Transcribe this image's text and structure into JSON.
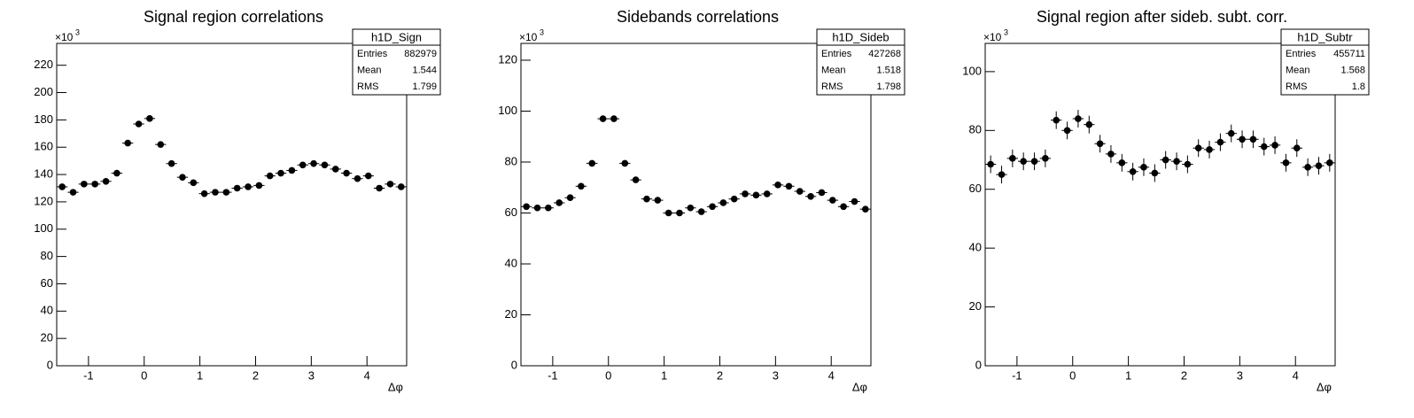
{
  "chart_data": [
    {
      "type": "scatter",
      "title": "Signal region correlations",
      "xlabel": "Δφ",
      "multiplier": "×10",
      "multiplier_exponent": "3",
      "stats": {
        "name": "h1D_Sign",
        "rows": [
          [
            "Entries",
            882979
          ],
          [
            "Mean",
            1.544
          ],
          [
            "RMS",
            1.799
          ]
        ]
      },
      "x": [
        -1.473,
        -1.276,
        -1.08,
        -0.884,
        -0.687,
        -0.491,
        -0.295,
        -0.098,
        0.098,
        0.295,
        0.491,
        0.687,
        0.884,
        1.08,
        1.276,
        1.473,
        1.669,
        1.866,
        2.062,
        2.258,
        2.454,
        2.651,
        2.847,
        3.043,
        3.24,
        3.436,
        3.632,
        3.829,
        4.025,
        4.221,
        4.418,
        4.614
      ],
      "values": [
        131,
        127,
        133,
        133,
        135,
        141,
        163,
        177,
        181,
        162,
        148,
        138,
        134,
        126,
        127,
        127,
        130,
        131,
        132,
        139,
        141,
        143,
        147,
        148,
        147,
        144,
        141,
        137,
        139,
        130,
        133,
        131
      ],
      "errors": [
        0.4,
        0.4,
        0.4,
        0.4,
        0.4,
        0.4,
        0.4,
        0.4,
        0.4,
        0.4,
        0.4,
        0.4,
        0.4,
        0.4,
        0.4,
        0.4,
        0.4,
        0.4,
        0.4,
        0.4,
        0.4,
        0.4,
        0.4,
        0.4,
        0.4,
        0.4,
        0.4,
        0.4,
        0.4,
        0.4,
        0.4,
        0.4
      ],
      "color": "#000000",
      "xlim": [
        -1.5708,
        4.7124
      ],
      "ylim": [
        0,
        236
      ],
      "xticks": [
        -1,
        0,
        1,
        2,
        3,
        4
      ],
      "yticks": [
        0,
        20,
        40,
        60,
        80,
        100,
        120,
        140,
        160,
        180,
        200,
        220
      ]
    },
    {
      "type": "scatter",
      "title": "Sidebands correlations",
      "xlabel": "Δφ",
      "multiplier": "×10",
      "multiplier_exponent": "3",
      "stats": {
        "name": "h1D_Sideb",
        "rows": [
          [
            "Entries",
            427268
          ],
          [
            "Mean",
            1.518
          ],
          [
            "RMS",
            1.798
          ]
        ]
      },
      "x": [
        -1.473,
        -1.276,
        -1.08,
        -0.884,
        -0.687,
        -0.491,
        -0.295,
        -0.098,
        0.098,
        0.295,
        0.491,
        0.687,
        0.884,
        1.08,
        1.276,
        1.473,
        1.669,
        1.866,
        2.062,
        2.258,
        2.454,
        2.651,
        2.847,
        3.043,
        3.24,
        3.436,
        3.632,
        3.829,
        4.025,
        4.221,
        4.418,
        4.614
      ],
      "values": [
        62.5,
        62,
        62,
        64,
        66,
        70.5,
        79.5,
        97,
        97,
        79.5,
        73,
        65.5,
        65,
        60,
        60,
        62,
        60.5,
        62.5,
        64,
        65.5,
        67.5,
        67,
        67.5,
        71,
        70.5,
        68.5,
        66.5,
        68,
        65,
        62.5,
        64.5,
        61.5
      ],
      "errors": [
        0.3,
        0.3,
        0.3,
        0.3,
        0.3,
        0.3,
        0.3,
        0.3,
        0.3,
        0.3,
        0.3,
        0.3,
        0.3,
        0.3,
        0.3,
        0.3,
        0.3,
        0.3,
        0.3,
        0.3,
        0.3,
        0.3,
        0.3,
        0.3,
        0.3,
        0.3,
        0.3,
        0.3,
        0.3,
        0.3,
        0.3,
        0.3
      ],
      "color": "#000000",
      "xlim": [
        -1.5708,
        4.7124
      ],
      "ylim": [
        0,
        126.6
      ],
      "xticks": [
        -1,
        0,
        1,
        2,
        3,
        4
      ],
      "yticks": [
        0,
        20,
        40,
        60,
        80,
        100,
        120
      ]
    },
    {
      "type": "scatter",
      "title": "Signal region after sideb. subt. corr.",
      "xlabel": "Δφ",
      "multiplier": "×10",
      "multiplier_exponent": "3",
      "stats": {
        "name": "h1D_Subtr",
        "rows": [
          [
            "Entries",
            455711
          ],
          [
            "Mean",
            1.568
          ],
          [
            "RMS",
            1.8
          ]
        ]
      },
      "x": [
        -1.473,
        -1.276,
        -1.08,
        -0.884,
        -0.687,
        -0.491,
        -0.295,
        -0.098,
        0.098,
        0.295,
        0.491,
        0.687,
        0.884,
        1.08,
        1.276,
        1.473,
        1.669,
        1.866,
        2.062,
        2.258,
        2.454,
        2.651,
        2.847,
        3.043,
        3.24,
        3.436,
        3.632,
        3.829,
        4.025,
        4.221,
        4.418,
        4.614
      ],
      "values": [
        68.5,
        65,
        70.5,
        69.5,
        69.5,
        70.5,
        83.5,
        80,
        84,
        82,
        75.5,
        72,
        69,
        66,
        67.5,
        65.5,
        70,
        69.5,
        68.5,
        74,
        73.5,
        76,
        79,
        77,
        77,
        74.5,
        75,
        69,
        74,
        67.5,
        68,
        69
      ],
      "errors": [
        3,
        3,
        3,
        3,
        3,
        3,
        3,
        3,
        3,
        3,
        3,
        3,
        3,
        3,
        3,
        3,
        3,
        3,
        3,
        3,
        3,
        3,
        3,
        3,
        3,
        3,
        3,
        3,
        3,
        3,
        3,
        3
      ],
      "color": "#000000",
      "xlim": [
        -1.5708,
        4.7124
      ],
      "ylim": [
        0,
        109.6
      ],
      "xticks": [
        -1,
        0,
        1,
        2,
        3,
        4
      ],
      "yticks": [
        0,
        20,
        40,
        60,
        80,
        100
      ]
    }
  ]
}
